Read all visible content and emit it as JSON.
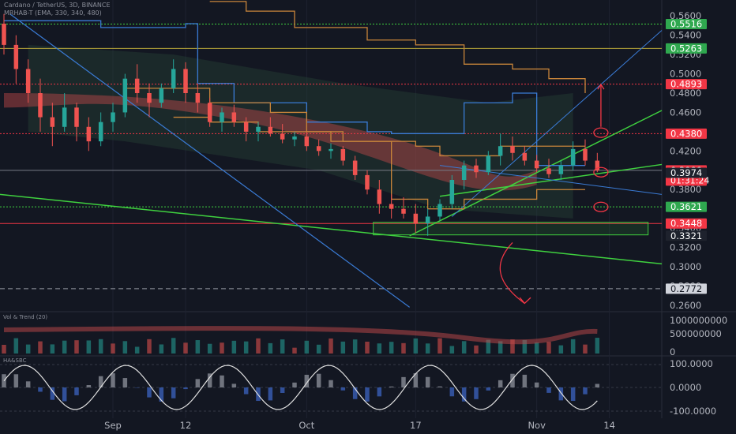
{
  "header": {
    "symbol_line": "Cardano / TetherUS, 3D, BINANCE",
    "indicator_line": "MRHAB-T (EMA, 330, 340, 480)"
  },
  "panes": {
    "volume_label": "Vol & Trend (20)",
    "osc_label": "HA&SBC"
  },
  "colors": {
    "background": "#131722",
    "axis_text": "#b2b5be",
    "green_line": "#3fd13f",
    "blue_line": "#3a7bd5",
    "red_line": "#d14b4b",
    "orange_line": "#c9853a",
    "red_badge": "#f23645",
    "green_badge": "#2fa84f",
    "dark_badge": "#1e222d"
  },
  "chart_data": {
    "type": "candlestick",
    "symbol": "ADA/USDT",
    "ylim": [
      0.255,
      0.57
    ],
    "price_ticks": [
      "0.5600",
      "0.5400",
      "0.5200",
      "0.5000",
      "0.4800",
      "0.4600",
      "0.4200",
      "0.4000",
      "0.3800",
      "0.3600",
      "0.3400",
      "0.3200",
      "0.3000",
      "0.2800",
      "0.2600"
    ],
    "x_labels": [
      {
        "label": "Sep",
        "index": 9
      },
      {
        "label": "12",
        "index": 15
      },
      {
        "label": "Oct",
        "index": 25
      },
      {
        "label": "17",
        "index": 34
      },
      {
        "label": "Nov",
        "index": 44
      },
      {
        "label": "14",
        "index": 50
      }
    ],
    "index_range": [
      0,
      54
    ],
    "candles": [
      {
        "o": 0.552,
        "h": 0.562,
        "l": 0.52,
        "c": 0.53
      },
      {
        "o": 0.53,
        "h": 0.54,
        "l": 0.49,
        "c": 0.505
      },
      {
        "o": 0.505,
        "h": 0.515,
        "l": 0.47,
        "c": 0.48
      },
      {
        "o": 0.48,
        "h": 0.495,
        "l": 0.44,
        "c": 0.455
      },
      {
        "o": 0.455,
        "h": 0.47,
        "l": 0.425,
        "c": 0.445
      },
      {
        "o": 0.445,
        "h": 0.48,
        "l": 0.44,
        "c": 0.465
      },
      {
        "o": 0.465,
        "h": 0.47,
        "l": 0.43,
        "c": 0.445
      },
      {
        "o": 0.445,
        "h": 0.455,
        "l": 0.42,
        "c": 0.43
      },
      {
        "o": 0.43,
        "h": 0.46,
        "l": 0.425,
        "c": 0.45
      },
      {
        "o": 0.45,
        "h": 0.47,
        "l": 0.44,
        "c": 0.46
      },
      {
        "o": 0.46,
        "h": 0.5,
        "l": 0.455,
        "c": 0.495
      },
      {
        "o": 0.495,
        "h": 0.51,
        "l": 0.47,
        "c": 0.48
      },
      {
        "o": 0.48,
        "h": 0.49,
        "l": 0.455,
        "c": 0.47
      },
      {
        "o": 0.47,
        "h": 0.49,
        "l": 0.465,
        "c": 0.485
      },
      {
        "o": 0.485,
        "h": 0.515,
        "l": 0.48,
        "c": 0.505
      },
      {
        "o": 0.505,
        "h": 0.512,
        "l": 0.47,
        "c": 0.48
      },
      {
        "o": 0.48,
        "h": 0.49,
        "l": 0.46,
        "c": 0.47
      },
      {
        "o": 0.47,
        "h": 0.475,
        "l": 0.445,
        "c": 0.45
      },
      {
        "o": 0.45,
        "h": 0.465,
        "l": 0.44,
        "c": 0.46
      },
      {
        "o": 0.46,
        "h": 0.468,
        "l": 0.445,
        "c": 0.45
      },
      {
        "o": 0.45,
        "h": 0.455,
        "l": 0.43,
        "c": 0.44
      },
      {
        "o": 0.44,
        "h": 0.45,
        "l": 0.43,
        "c": 0.445
      },
      {
        "o": 0.445,
        "h": 0.455,
        "l": 0.435,
        "c": 0.438
      },
      {
        "o": 0.438,
        "h": 0.448,
        "l": 0.428,
        "c": 0.432
      },
      {
        "o": 0.432,
        "h": 0.44,
        "l": 0.425,
        "c": 0.435
      },
      {
        "o": 0.435,
        "h": 0.44,
        "l": 0.42,
        "c": 0.425
      },
      {
        "o": 0.425,
        "h": 0.432,
        "l": 0.415,
        "c": 0.42
      },
      {
        "o": 0.42,
        "h": 0.428,
        "l": 0.412,
        "c": 0.422
      },
      {
        "o": 0.422,
        "h": 0.425,
        "l": 0.405,
        "c": 0.41
      },
      {
        "o": 0.41,
        "h": 0.415,
        "l": 0.39,
        "c": 0.395
      },
      {
        "o": 0.395,
        "h": 0.4,
        "l": 0.375,
        "c": 0.38
      },
      {
        "o": 0.38,
        "h": 0.39,
        "l": 0.355,
        "c": 0.365
      },
      {
        "o": 0.365,
        "h": 0.375,
        "l": 0.35,
        "c": 0.36
      },
      {
        "o": 0.36,
        "h": 0.372,
        "l": 0.35,
        "c": 0.355
      },
      {
        "o": 0.355,
        "h": 0.365,
        "l": 0.335,
        "c": 0.345
      },
      {
        "o": 0.345,
        "h": 0.36,
        "l": 0.332,
        "c": 0.352
      },
      {
        "o": 0.352,
        "h": 0.37,
        "l": 0.348,
        "c": 0.365
      },
      {
        "o": 0.365,
        "h": 0.395,
        "l": 0.36,
        "c": 0.39
      },
      {
        "o": 0.39,
        "h": 0.41,
        "l": 0.38,
        "c": 0.405
      },
      {
        "o": 0.405,
        "h": 0.412,
        "l": 0.392,
        "c": 0.398
      },
      {
        "o": 0.398,
        "h": 0.42,
        "l": 0.395,
        "c": 0.415
      },
      {
        "o": 0.415,
        "h": 0.438,
        "l": 0.405,
        "c": 0.425
      },
      {
        "o": 0.425,
        "h": 0.435,
        "l": 0.41,
        "c": 0.418
      },
      {
        "o": 0.418,
        "h": 0.425,
        "l": 0.405,
        "c": 0.41
      },
      {
        "o": 0.41,
        "h": 0.416,
        "l": 0.398,
        "c": 0.402
      },
      {
        "o": 0.402,
        "h": 0.412,
        "l": 0.392,
        "c": 0.396
      },
      {
        "o": 0.396,
        "h": 0.41,
        "l": 0.39,
        "c": 0.405
      },
      {
        "o": 0.405,
        "h": 0.43,
        "l": 0.4,
        "c": 0.422
      },
      {
        "o": 0.422,
        "h": 0.432,
        "l": 0.405,
        "c": 0.41
      },
      {
        "o": 0.41,
        "h": 0.418,
        "l": 0.398,
        "c": 0.3999
      }
    ],
    "badges": [
      {
        "value": "0.5516",
        "price": 0.5516,
        "kind": "green"
      },
      {
        "value": "0.5263",
        "price": 0.5263,
        "kind": "green"
      },
      {
        "value": "0.4893",
        "price": 0.4893,
        "kind": "red"
      },
      {
        "value": "0.4380",
        "price": 0.438,
        "kind": "red"
      },
      {
        "value": "0.3999",
        "price": 0.3999,
        "kind": "red",
        "sub": "01:31:24"
      },
      {
        "value": "0.3974",
        "price": 0.3974,
        "kind": "dark"
      },
      {
        "value": "0.3621",
        "price": 0.3621,
        "kind": "green"
      },
      {
        "value": "0.3448",
        "price": 0.3448,
        "kind": "red"
      },
      {
        "value": "0.3321",
        "price": 0.3321,
        "kind": "dark"
      },
      {
        "value": "0.2772",
        "price": 0.2772,
        "kind": "white"
      }
    ],
    "volume_axis": [
      "1000000000",
      "500000000",
      "0"
    ],
    "oscillator_axis": [
      "100.0000",
      "0.0000",
      "-100.0000"
    ]
  }
}
